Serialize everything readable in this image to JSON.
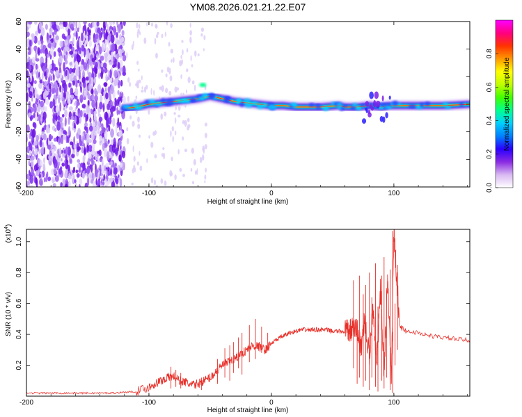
{
  "title": "YM08.2026.021.21.22.E07",
  "chart_data": [
    {
      "type": "heatmap",
      "name": "spectrogram",
      "xlabel": "Height of straight line (km)",
      "ylabel": "Frequency (Hz)",
      "xlim": [
        -200,
        162
      ],
      "ylim": [
        -60,
        60
      ],
      "xticks": [
        "-200",
        "-100",
        "0",
        "100"
      ],
      "yticks": [
        "-60",
        "-40",
        "-20",
        "0",
        "20",
        "40",
        "60"
      ],
      "colorbar": {
        "label": "Normalized spectral amplitude",
        "range": [
          0,
          1
        ],
        "ticks": [
          "0.0",
          "0.2",
          "0.4",
          "0.6",
          "0.8"
        ],
        "colors": [
          "#ffffff",
          "#d9b8f2",
          "#8a2be2",
          "#2a00ff",
          "#0080ff",
          "#00d0ff",
          "#00ff90",
          "#40ff00",
          "#c0ff00",
          "#ffff00",
          "#ff9900",
          "#ff3300",
          "#ff0080",
          "#ff00ff"
        ]
      },
      "ridge_line": {
        "x": [
          -120,
          -110,
          -100,
          -90,
          -80,
          -70,
          -60,
          -50,
          -40,
          -30,
          -20,
          -10,
          0,
          10,
          20,
          40,
          55,
          60,
          70,
          80,
          90,
          95,
          100,
          120,
          140,
          162
        ],
        "y": [
          -3,
          -2,
          0,
          1,
          2,
          3,
          4,
          6,
          4,
          2,
          1,
          0,
          -1,
          -1,
          -2,
          -2,
          -1,
          -2,
          -2,
          -1,
          -2,
          -1,
          -1,
          -1,
          -1,
          0
        ]
      }
    },
    {
      "type": "line",
      "name": "snr",
      "xlabel": "Height of straight line (km)",
      "ylabel": "SNR (10 * v/v)",
      "y_multiplier": "(x10",
      "y_multiplier_exp": "4",
      "y_multiplier_close": ")",
      "xlim": [
        -200,
        162
      ],
      "ylim": [
        0,
        1.08
      ],
      "xticks": [
        "-200",
        "-100",
        "0",
        "100"
      ],
      "yticks": [
        "0.2",
        "0.4",
        "0.6",
        "0.8",
        "1.0"
      ],
      "color": "#e8302a",
      "x": [
        -200,
        -190,
        -180,
        -170,
        -160,
        -150,
        -140,
        -130,
        -120,
        -110,
        -100,
        -95,
        -90,
        -85,
        -80,
        -75,
        -70,
        -65,
        -60,
        -55,
        -50,
        -45,
        -40,
        -35,
        -30,
        -25,
        -20,
        -15,
        -10,
        -5,
        0,
        5,
        10,
        15,
        20,
        25,
        30,
        35,
        40,
        45,
        50,
        55,
        60,
        63,
        66,
        70,
        73,
        76,
        80,
        83,
        86,
        89,
        92,
        95,
        98,
        100,
        102,
        105,
        110,
        120,
        130,
        140,
        150,
        162
      ],
      "y": [
        0.02,
        0.02,
        0.02,
        0.02,
        0.02,
        0.02,
        0.02,
        0.02,
        0.025,
        0.03,
        0.06,
        0.08,
        0.1,
        0.12,
        0.13,
        0.1,
        0.09,
        0.07,
        0.08,
        0.1,
        0.12,
        0.16,
        0.2,
        0.22,
        0.24,
        0.27,
        0.3,
        0.33,
        0.32,
        0.3,
        0.34,
        0.37,
        0.39,
        0.41,
        0.42,
        0.43,
        0.43,
        0.43,
        0.43,
        0.43,
        0.42,
        0.42,
        0.42,
        0.42,
        0.43,
        0.44,
        0.3,
        0.5,
        0.25,
        0.6,
        0.2,
        0.7,
        0.15,
        0.75,
        0.1,
        1.07,
        0.8,
        0.45,
        0.42,
        0.41,
        0.39,
        0.38,
        0.37,
        0.36
      ],
      "spikes": {
        "x": [
          -82,
          -78,
          -74,
          -57,
          -44,
          -38,
          -34,
          -31,
          -27,
          -24,
          -18,
          -13,
          -8,
          -3,
          67,
          70,
          72,
          75,
          77,
          80,
          82,
          85,
          87,
          90,
          92,
          94,
          97,
          99,
          101,
          103
        ],
        "top": [
          0.19,
          0.17,
          0.15,
          0.12,
          0.24,
          0.31,
          0.33,
          0.35,
          0.38,
          0.41,
          0.46,
          0.5,
          0.45,
          0.41,
          0.75,
          0.45,
          0.78,
          0.66,
          0.72,
          0.8,
          0.64,
          0.86,
          0.58,
          0.78,
          0.9,
          0.7,
          0.82,
          1.07,
          0.6,
          0.85
        ],
        "bottom": [
          0.05,
          0.06,
          0.05,
          0.04,
          0.08,
          0.12,
          0.1,
          0.15,
          0.18,
          0.14,
          0.22,
          0.24,
          0.28,
          0.3,
          0.18,
          0.08,
          0.12,
          0.06,
          0.1,
          0.04,
          0.12,
          0.06,
          0.03,
          0.1,
          0.05,
          0.12,
          0.04,
          0.02,
          0.2,
          0.3
        ]
      }
    }
  ]
}
